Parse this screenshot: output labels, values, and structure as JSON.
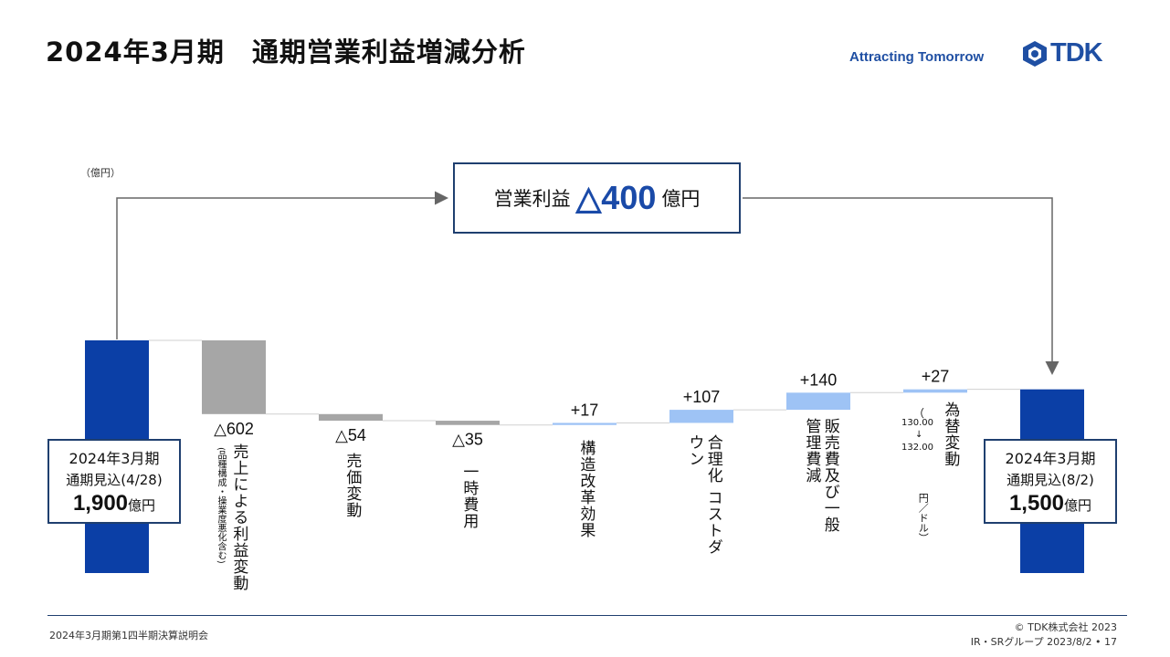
{
  "header": {
    "title": "2024年3月期　通期営業利益増減分析",
    "tagline": "Attracting Tomorrow",
    "logo_text": "TDK"
  },
  "colors": {
    "end_bar": "#0b3fa6",
    "negative_bar": "#a6a6a6",
    "positive_bar": "#9ec3f5",
    "accent": "#1a4aa8",
    "border": "#1f3f6f"
  },
  "unit_label": "（億円）",
  "callout": {
    "label": "営業利益",
    "value": "△400",
    "unit": "億円"
  },
  "start_box": {
    "line1": "2024年3月期",
    "line2": "通期見込(4/28)",
    "value": "1,900",
    "unit": "億円"
  },
  "end_box": {
    "line1": "2024年3月期",
    "line2": "通期見込(8/2)",
    "value": "1,500",
    "unit": "億円"
  },
  "fx_detail": {
    "from": "130.00",
    "arrow": "↓",
    "to": "132.00",
    "unit": "円／ドル）",
    "paren": "（"
  },
  "chart_data": {
    "type": "bar",
    "subtype": "waterfall",
    "title": "2024年3月期　通期営業利益増減分析",
    "unit": "億円",
    "start": {
      "label": "2024年3月期 通期見込(4/28)",
      "value": 1900
    },
    "end": {
      "label": "2024年3月期 通期見込(8/2)",
      "value": 1500
    },
    "categories": [
      "売上による利益変動",
      "売価変動",
      "一時費用",
      "構造改革効果",
      "合理化 コストダウン",
      "販売費及び一般管理費減",
      "為替変動"
    ],
    "category_notes": [
      "(品種構成・操業度悪化含む)",
      "",
      "",
      "",
      "",
      "",
      "130.00→132.00 円／ドル"
    ],
    "values": [
      -602,
      -54,
      -35,
      17,
      107,
      140,
      27
    ],
    "value_labels": [
      "△602",
      "△54",
      "△35",
      "+17",
      "+107",
      "+140",
      "+27"
    ],
    "total_change": -400,
    "total_change_label": "△400"
  },
  "footer": {
    "left": "2024年3月期第1四半期決算説明会",
    "copyright": "© TDK株式会社 2023",
    "page": "IR・SRグループ 2023/8/2 • 17"
  }
}
